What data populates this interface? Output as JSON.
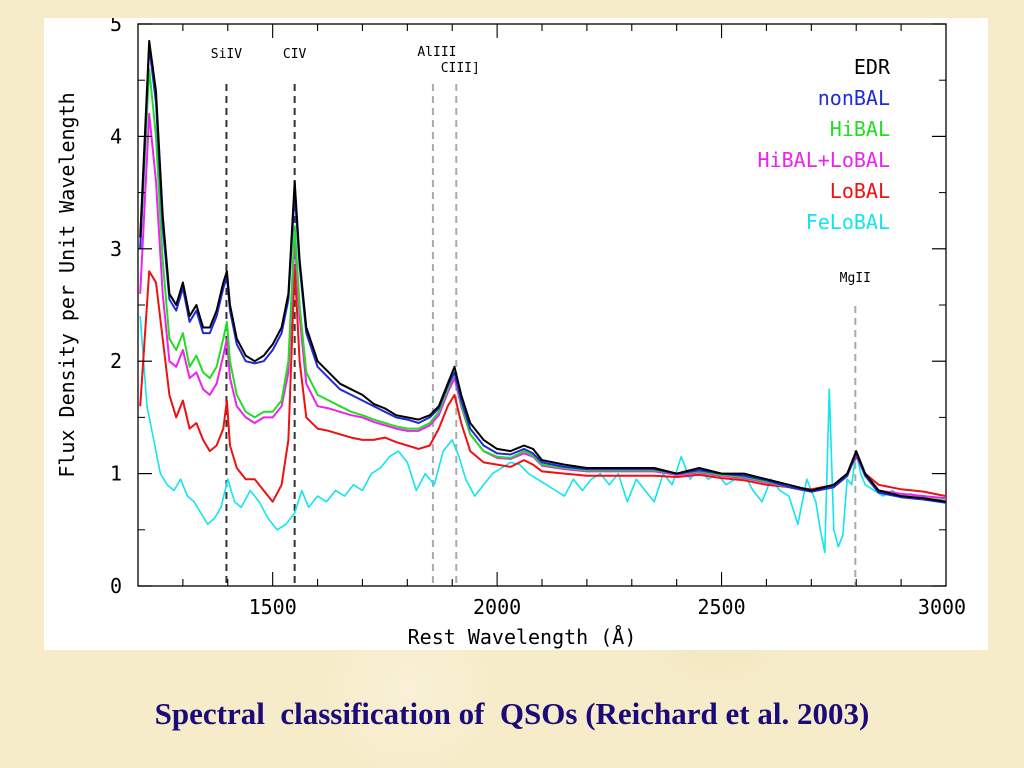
{
  "caption": "Spectral  classification of  QSOs (Reichard et al. 2003)",
  "chart_data": {
    "type": "line",
    "title": "",
    "xlabel": "Rest Wavelength (Å)",
    "ylabel": "Flux Density per Unit Wavelength",
    "xlim": [
      1200,
      3000
    ],
    "ylim": [
      0,
      5
    ],
    "xticks": [
      1500,
      2000,
      2500,
      3000
    ],
    "yticks": [
      0,
      1,
      2,
      3,
      4,
      5
    ],
    "grid": false,
    "legend_position": "top-right",
    "lines": [
      {
        "label": "SiIV",
        "x": 1397,
        "color": "#333333"
      },
      {
        "label": "CIV",
        "x": 1549,
        "color": "#333333"
      },
      {
        "label": "AlIII",
        "x": 1857,
        "color": "#aaaaaa"
      },
      {
        "label": "CIII]",
        "x": 1909,
        "color": "#aaaaaa"
      },
      {
        "label": "MgII",
        "x": 2798,
        "color": "#aaaaaa"
      }
    ],
    "series": [
      {
        "name": "EDR",
        "color": "#000000",
        "x": [
          1205,
          1225,
          1240,
          1255,
          1270,
          1285,
          1300,
          1315,
          1330,
          1345,
          1360,
          1375,
          1390,
          1398,
          1405,
          1420,
          1440,
          1460,
          1480,
          1500,
          1520,
          1535,
          1549,
          1560,
          1575,
          1600,
          1625,
          1650,
          1675,
          1700,
          1725,
          1750,
          1775,
          1800,
          1825,
          1850,
          1870,
          1890,
          1905,
          1920,
          1940,
          1970,
          2000,
          2030,
          2060,
          2080,
          2100,
          2150,
          2200,
          2250,
          2300,
          2350,
          2400,
          2450,
          2500,
          2550,
          2600,
          2650,
          2700,
          2750,
          2780,
          2800,
          2820,
          2850,
          2900,
          2950,
          3000
        ],
        "y": [
          3.1,
          4.85,
          4.4,
          3.3,
          2.6,
          2.5,
          2.7,
          2.4,
          2.5,
          2.3,
          2.3,
          2.45,
          2.7,
          2.8,
          2.5,
          2.2,
          2.05,
          2.0,
          2.05,
          2.15,
          2.3,
          2.6,
          3.6,
          2.9,
          2.3,
          2.0,
          1.9,
          1.8,
          1.75,
          1.7,
          1.62,
          1.58,
          1.52,
          1.5,
          1.48,
          1.52,
          1.6,
          1.8,
          1.95,
          1.7,
          1.45,
          1.3,
          1.22,
          1.2,
          1.25,
          1.22,
          1.12,
          1.08,
          1.05,
          1.05,
          1.05,
          1.05,
          1.0,
          1.05,
          1.0,
          1.0,
          0.95,
          0.9,
          0.85,
          0.9,
          1.0,
          1.2,
          1.0,
          0.85,
          0.8,
          0.78,
          0.75
        ]
      },
      {
        "name": "nonBAL",
        "color": "#1f2bd6",
        "x": [
          1205,
          1225,
          1240,
          1255,
          1270,
          1285,
          1300,
          1315,
          1330,
          1345,
          1360,
          1375,
          1390,
          1398,
          1405,
          1420,
          1440,
          1460,
          1480,
          1500,
          1520,
          1535,
          1549,
          1560,
          1575,
          1600,
          1625,
          1650,
          1675,
          1700,
          1725,
          1750,
          1775,
          1800,
          1825,
          1850,
          1870,
          1890,
          1905,
          1920,
          1940,
          1970,
          2000,
          2030,
          2060,
          2080,
          2100,
          2150,
          2200,
          2250,
          2300,
          2350,
          2400,
          2450,
          2500,
          2550,
          2600,
          2650,
          2700,
          2750,
          2780,
          2800,
          2820,
          2850,
          2900,
          2950,
          3000
        ],
        "y": [
          3.0,
          4.8,
          4.3,
          3.2,
          2.55,
          2.45,
          2.65,
          2.35,
          2.45,
          2.25,
          2.25,
          2.4,
          2.65,
          2.75,
          2.45,
          2.15,
          2.0,
          1.98,
          2.0,
          2.1,
          2.25,
          2.55,
          3.5,
          2.85,
          2.25,
          1.95,
          1.85,
          1.75,
          1.7,
          1.65,
          1.6,
          1.55,
          1.5,
          1.48,
          1.45,
          1.5,
          1.58,
          1.78,
          1.9,
          1.65,
          1.4,
          1.25,
          1.18,
          1.17,
          1.22,
          1.18,
          1.1,
          1.06,
          1.04,
          1.04,
          1.04,
          1.04,
          1.0,
          1.03,
          1.0,
          0.98,
          0.94,
          0.88,
          0.84,
          0.88,
          0.98,
          1.18,
          0.98,
          0.83,
          0.79,
          0.77,
          0.74
        ]
      },
      {
        "name": "HiBAL",
        "color": "#22dd22",
        "x": [
          1205,
          1225,
          1240,
          1255,
          1270,
          1285,
          1300,
          1315,
          1330,
          1345,
          1360,
          1375,
          1390,
          1398,
          1405,
          1420,
          1440,
          1460,
          1480,
          1500,
          1520,
          1535,
          1549,
          1560,
          1575,
          1600,
          1625,
          1650,
          1675,
          1700,
          1725,
          1750,
          1775,
          1800,
          1825,
          1850,
          1870,
          1890,
          1905,
          1920,
          1940,
          1970,
          2000,
          2030,
          2060,
          2080,
          2100,
          2150,
          2200,
          2250,
          2300,
          2350,
          2400,
          2450,
          2500,
          2550,
          2600,
          2650,
          2700,
          2750,
          2780,
          2800,
          2820,
          2850,
          2900,
          2950,
          3000
        ],
        "y": [
          3.0,
          4.6,
          4.0,
          2.9,
          2.2,
          2.1,
          2.25,
          1.95,
          2.05,
          1.9,
          1.85,
          1.95,
          2.2,
          2.35,
          2.0,
          1.7,
          1.55,
          1.5,
          1.55,
          1.55,
          1.65,
          2.0,
          3.2,
          2.5,
          1.9,
          1.7,
          1.65,
          1.6,
          1.55,
          1.52,
          1.48,
          1.45,
          1.42,
          1.4,
          1.4,
          1.45,
          1.55,
          1.75,
          1.9,
          1.62,
          1.35,
          1.2,
          1.15,
          1.14,
          1.2,
          1.16,
          1.08,
          1.05,
          1.03,
          1.03,
          1.03,
          1.03,
          1.0,
          1.02,
          0.99,
          0.97,
          0.93,
          0.88,
          0.84,
          0.88,
          0.98,
          1.18,
          0.98,
          0.84,
          0.8,
          0.78,
          0.76
        ]
      },
      {
        "name": "HiBAL+LoBAL",
        "color": "#ee22ee",
        "x": [
          1205,
          1225,
          1240,
          1255,
          1270,
          1285,
          1300,
          1315,
          1330,
          1345,
          1360,
          1375,
          1390,
          1398,
          1405,
          1420,
          1440,
          1460,
          1480,
          1500,
          1520,
          1535,
          1549,
          1560,
          1575,
          1600,
          1625,
          1650,
          1675,
          1700,
          1725,
          1750,
          1775,
          1800,
          1825,
          1850,
          1870,
          1890,
          1905,
          1920,
          1940,
          1970,
          2000,
          2030,
          2060,
          2080,
          2100,
          2150,
          2200,
          2250,
          2300,
          2350,
          2400,
          2450,
          2500,
          2550,
          2600,
          2650,
          2700,
          2750,
          2780,
          2800,
          2820,
          2850,
          2900,
          2950,
          3000
        ],
        "y": [
          2.6,
          4.2,
          3.6,
          2.6,
          2.0,
          1.95,
          2.1,
          1.85,
          1.9,
          1.75,
          1.7,
          1.8,
          2.05,
          2.2,
          1.85,
          1.6,
          1.5,
          1.45,
          1.5,
          1.5,
          1.6,
          1.9,
          3.1,
          2.4,
          1.8,
          1.6,
          1.58,
          1.55,
          1.52,
          1.5,
          1.46,
          1.43,
          1.4,
          1.38,
          1.38,
          1.43,
          1.52,
          1.72,
          1.85,
          1.6,
          1.35,
          1.2,
          1.14,
          1.13,
          1.18,
          1.15,
          1.07,
          1.04,
          1.02,
          1.02,
          1.02,
          1.02,
          0.99,
          1.01,
          0.98,
          0.96,
          0.92,
          0.88,
          0.84,
          0.88,
          0.98,
          1.17,
          0.98,
          0.85,
          0.82,
          0.8,
          0.78
        ]
      },
      {
        "name": "LoBAL",
        "color": "#ee1111",
        "x": [
          1205,
          1225,
          1240,
          1255,
          1270,
          1285,
          1300,
          1315,
          1330,
          1345,
          1360,
          1375,
          1390,
          1398,
          1405,
          1420,
          1440,
          1460,
          1480,
          1500,
          1520,
          1535,
          1549,
          1560,
          1575,
          1600,
          1625,
          1650,
          1675,
          1700,
          1725,
          1750,
          1775,
          1800,
          1825,
          1850,
          1870,
          1890,
          1905,
          1920,
          1940,
          1970,
          2000,
          2030,
          2060,
          2080,
          2100,
          2150,
          2200,
          2250,
          2300,
          2350,
          2400,
          2450,
          2500,
          2550,
          2600,
          2650,
          2700,
          2750,
          2780,
          2800,
          2820,
          2850,
          2900,
          2950,
          3000
        ],
        "y": [
          1.6,
          2.8,
          2.7,
          2.2,
          1.7,
          1.5,
          1.65,
          1.4,
          1.45,
          1.3,
          1.2,
          1.25,
          1.4,
          1.65,
          1.25,
          1.05,
          0.95,
          0.95,
          0.85,
          0.75,
          0.9,
          1.3,
          2.85,
          2.0,
          1.5,
          1.4,
          1.38,
          1.35,
          1.32,
          1.3,
          1.3,
          1.32,
          1.28,
          1.25,
          1.22,
          1.25,
          1.4,
          1.6,
          1.7,
          1.45,
          1.2,
          1.1,
          1.08,
          1.06,
          1.12,
          1.08,
          1.02,
          1.0,
          0.98,
          0.98,
          0.98,
          0.98,
          0.97,
          0.99,
          0.96,
          0.94,
          0.9,
          0.88,
          0.86,
          0.9,
          1.0,
          1.15,
          1.0,
          0.9,
          0.86,
          0.84,
          0.8
        ]
      },
      {
        "name": "FeLoBAL",
        "color": "#11e5ee",
        "x": [
          1205,
          1220,
          1235,
          1250,
          1265,
          1280,
          1295,
          1310,
          1325,
          1340,
          1355,
          1370,
          1385,
          1400,
          1415,
          1430,
          1450,
          1470,
          1490,
          1510,
          1530,
          1549,
          1565,
          1580,
          1600,
          1620,
          1640,
          1660,
          1680,
          1700,
          1720,
          1740,
          1760,
          1780,
          1800,
          1820,
          1840,
          1860,
          1880,
          1900,
          1915,
          1930,
          1950,
          1970,
          1990,
          2010,
          2030,
          2050,
          2070,
          2090,
          2110,
          2130,
          2150,
          2170,
          2190,
          2210,
          2230,
          2250,
          2270,
          2290,
          2310,
          2330,
          2350,
          2370,
          2390,
          2410,
          2430,
          2450,
          2470,
          2490,
          2510,
          2530,
          2550,
          2570,
          2590,
          2610,
          2630,
          2650,
          2670,
          2690,
          2710,
          2720,
          2730,
          2740,
          2750,
          2760,
          2770,
          2780,
          2790,
          2800,
          2810,
          2820,
          2840,
          2860,
          2880,
          2900,
          2920,
          2940,
          2960,
          2980,
          3000
        ],
        "y": [
          2.4,
          1.6,
          1.3,
          1.0,
          0.9,
          0.85,
          0.95,
          0.8,
          0.75,
          0.65,
          0.55,
          0.6,
          0.7,
          0.95,
          0.75,
          0.7,
          0.85,
          0.75,
          0.6,
          0.5,
          0.55,
          0.65,
          0.85,
          0.7,
          0.8,
          0.75,
          0.85,
          0.8,
          0.9,
          0.85,
          1.0,
          1.05,
          1.15,
          1.2,
          1.1,
          0.85,
          1.0,
          0.9,
          1.2,
          1.3,
          1.15,
          0.95,
          0.8,
          0.9,
          1.0,
          1.05,
          1.1,
          1.08,
          1.0,
          0.95,
          0.9,
          0.85,
          0.8,
          0.95,
          0.85,
          0.95,
          1.0,
          0.9,
          1.0,
          0.75,
          0.95,
          0.85,
          0.75,
          1.0,
          0.9,
          1.15,
          0.95,
          1.05,
          0.95,
          1.0,
          0.9,
          0.95,
          1.0,
          0.85,
          0.75,
          0.95,
          0.85,
          0.8,
          0.55,
          0.95,
          0.75,
          0.5,
          0.3,
          1.75,
          0.5,
          0.35,
          0.45,
          0.95,
          0.9,
          1.2,
          1.0,
          0.9,
          0.85,
          0.8,
          0.85,
          0.8,
          0.82,
          0.8,
          0.78,
          0.76,
          0.75
        ]
      }
    ]
  }
}
